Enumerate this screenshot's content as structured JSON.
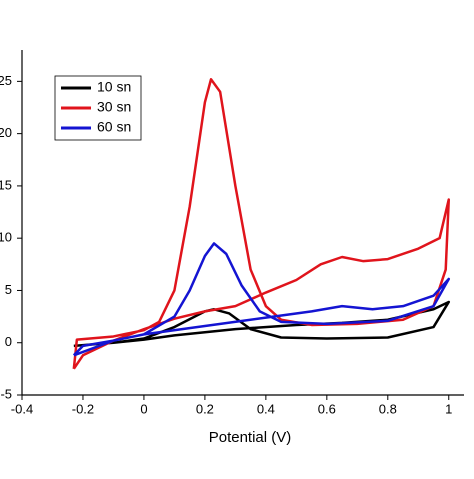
{
  "chart_data": {
    "type": "line",
    "x_label": "Potential (V)",
    "xlim": [
      -0.4,
      1.05
    ],
    "xticks": [
      -0.4,
      -0.2,
      0.0,
      0.2,
      0.4,
      0.6,
      0.8,
      1.0
    ],
    "ylim": [
      -5,
      28
    ],
    "yticks": [
      25,
      20,
      15,
      10,
      5,
      0,
      -5
    ],
    "legend": "upper left",
    "series": [
      {
        "name": "10 sn",
        "color": "#000000",
        "x": [
          -0.23,
          -0.1,
          0,
          0.1,
          0.2,
          0.23,
          0.28,
          0.35,
          0.45,
          0.6,
          0.8,
          0.95,
          1.0,
          0.95,
          0.8,
          0.65,
          0.5,
          0.3,
          0.1,
          0,
          -0.1,
          -0.23
        ],
        "values": [
          -0.3,
          0,
          0.4,
          1.5,
          3,
          3.2,
          2.8,
          1.3,
          0.5,
          0.4,
          0.5,
          1.5,
          3.9,
          3.2,
          2.2,
          1.9,
          1.7,
          1.3,
          0.7,
          0.3,
          0,
          -0.3
        ]
      },
      {
        "name": "30 sn",
        "color": "#e0141c",
        "x": [
          -0.23,
          -0.22,
          -0.1,
          0,
          0.05,
          0.1,
          0.15,
          0.2,
          0.22,
          0.25,
          0.3,
          0.35,
          0.4,
          0.45,
          0.55,
          0.7,
          0.85,
          0.95,
          0.99,
          1.0,
          0.97,
          0.9,
          0.8,
          0.72,
          0.65,
          0.58,
          0.5,
          0.4,
          0.3,
          0.2,
          0.1,
          0,
          -0.1,
          -0.2,
          -0.23
        ],
        "values": [
          -2.5,
          0.3,
          0.6,
          1.2,
          2,
          5,
          13,
          23,
          25.2,
          24,
          15,
          7,
          3.5,
          2.2,
          1.7,
          1.8,
          2.2,
          3.5,
          7,
          13.7,
          10,
          9,
          8,
          7.8,
          8.2,
          7.5,
          6,
          4.8,
          3.5,
          3,
          2.3,
          1.3,
          0.2,
          -1.2,
          -2.5
        ]
      },
      {
        "name": "60 sn",
        "color": "#1414d2",
        "x": [
          -0.23,
          -0.2,
          -0.1,
          0,
          0.1,
          0.15,
          0.2,
          0.23,
          0.27,
          0.32,
          0.38,
          0.45,
          0.6,
          0.8,
          0.95,
          1.0,
          0.95,
          0.85,
          0.75,
          0.65,
          0.55,
          0.4,
          0.2,
          0,
          -0.1,
          -0.23
        ],
        "values": [
          -1.2,
          -0.3,
          0.2,
          0.8,
          2.5,
          5,
          8.3,
          9.5,
          8.5,
          5.5,
          3,
          2,
          1.8,
          2.1,
          3.5,
          6.1,
          4.5,
          3.5,
          3.2,
          3.5,
          3,
          2.4,
          1.6,
          0.8,
          0.2,
          -1.2
        ]
      }
    ]
  }
}
